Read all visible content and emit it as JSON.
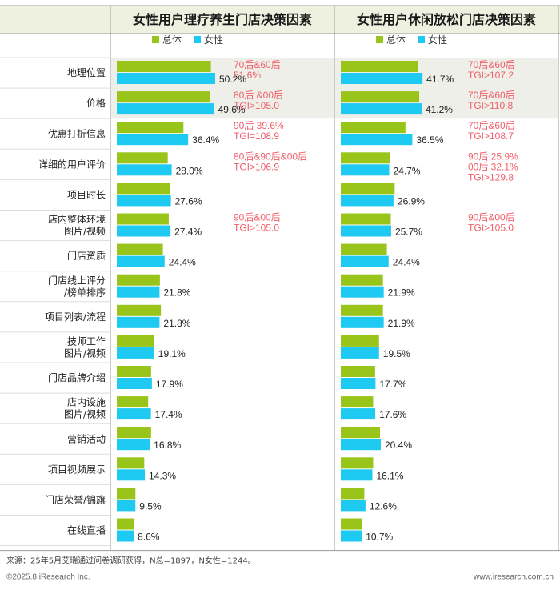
{
  "colors": {
    "total": "#99c419",
    "female": "#1ec9f2",
    "annotation": "#f0606b",
    "header_bg": "#eef0e0",
    "highlight_bg": "#efefe9",
    "border": "#999999"
  },
  "legend": {
    "total": "总体",
    "female": "女性"
  },
  "categories": [
    [
      "地理位置"
    ],
    [
      "价格"
    ],
    [
      "优惠打折信息"
    ],
    [
      "详细的用户评价"
    ],
    [
      "项目时长"
    ],
    [
      "店内整体环境",
      "图片/视频"
    ],
    [
      "门店资质"
    ],
    [
      "门店线上评分",
      "/榜单排序"
    ],
    [
      "项目列表/流程"
    ],
    [
      "技师工作",
      "图片/视频"
    ],
    [
      "门店品牌介绍"
    ],
    [
      "店内设施",
      "图片/视频"
    ],
    [
      "营销活动"
    ],
    [
      "项目视频展示"
    ],
    [
      "门店荣誉/锦旗"
    ],
    [
      "在线直播"
    ]
  ],
  "chart_data": [
    {
      "type": "bar",
      "title": "女性用户理疗养生门店决策因素",
      "series": [
        {
          "name": "总体",
          "values": [
            48.0,
            47.5,
            34.0,
            26.0,
            27.0,
            26.5,
            23.5,
            22.0,
            22.5,
            19.0,
            17.5,
            16.0,
            17.5,
            14.0,
            9.5,
            9.0
          ]
        },
        {
          "name": "女性",
          "values": [
            50.2,
            49.6,
            36.4,
            28.0,
            27.6,
            27.4,
            24.4,
            21.8,
            21.8,
            19.1,
            17.9,
            17.4,
            16.8,
            14.3,
            9.5,
            8.6
          ]
        }
      ],
      "value_labels": [
        "50.2%",
        "49.6%",
        "36.4%",
        "28.0%",
        "27.6%",
        "27.4%",
        "24.4%",
        "21.8%",
        "21.8%",
        "19.1%",
        "17.9%",
        "17.4%",
        "16.8%",
        "14.3%",
        "9.5%",
        "8.6%"
      ],
      "annotations": [
        {
          "row": 0,
          "lines": [
            "70后&60后",
            "51.6%"
          ]
        },
        {
          "row": 1,
          "lines": [
            "80后 &00后",
            "TGI>105.0"
          ]
        },
        {
          "row": 2,
          "lines": [
            "90后 39.6%",
            "TGI=108.9"
          ]
        },
        {
          "row": 3,
          "lines": [
            "80后&90后&00后",
            "TGI>106.9"
          ]
        },
        {
          "row": 5,
          "lines": [
            "90后&00后",
            "TGI>105.0"
          ]
        }
      ],
      "highlight_rows": [
        0,
        1
      ],
      "xlim": [
        0,
        100
      ]
    },
    {
      "type": "bar",
      "title": "女性用户休闲放松门店决策因素",
      "series": [
        {
          "name": "总体",
          "values": [
            39.5,
            40.0,
            33.0,
            25.0,
            27.5,
            25.5,
            23.5,
            21.5,
            21.5,
            19.5,
            17.5,
            16.5,
            20.0,
            16.5,
            12.0,
            11.0
          ]
        },
        {
          "name": "女性",
          "values": [
            41.7,
            41.2,
            36.5,
            24.7,
            26.9,
            25.7,
            24.4,
            21.9,
            21.9,
            19.5,
            17.7,
            17.6,
            20.4,
            16.1,
            12.6,
            10.7
          ]
        }
      ],
      "value_labels": [
        "41.7%",
        "41.2%",
        "36.5%",
        "24.7%",
        "26.9%",
        "25.7%",
        "24.4%",
        "21.9%",
        "21.9%",
        "19.5%",
        "17.7%",
        "17.6%",
        "20.4%",
        "16.1%",
        "12.6%",
        "10.7%"
      ],
      "annotations": [
        {
          "row": 0,
          "lines": [
            "70后&60后",
            "TGI>107.2"
          ]
        },
        {
          "row": 1,
          "lines": [
            "70后&60后",
            "TGI>110.8"
          ]
        },
        {
          "row": 2,
          "lines": [
            "70后&60后",
            "TGI>108.7"
          ]
        },
        {
          "row": 3,
          "lines": [
            "90后 25.9%",
            "00后 32.1%",
            "TGI>129.8"
          ]
        },
        {
          "row": 5,
          "lines": [
            "90后&00后",
            "TGI>105.0"
          ]
        }
      ],
      "highlight_rows": [
        0,
        1
      ],
      "xlim": [
        0,
        100
      ]
    }
  ],
  "footer": {
    "source": "来源：25年5月艾瑞通过问卷调研获得，N总=1897，N女性=1244。",
    "copyright": "©2025.8 iResearch Inc.",
    "website": "www.iresearch.com.cn"
  }
}
